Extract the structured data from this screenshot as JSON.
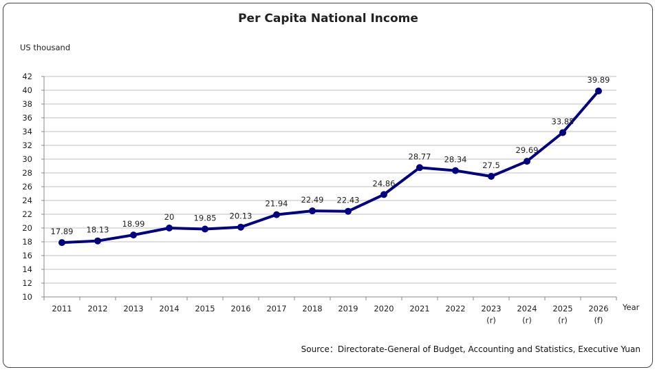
{
  "chart_data": {
    "type": "line",
    "title": "Per Capita National Income",
    "ylabel": "US thousand",
    "xlabel": "Year",
    "categories": [
      "2011",
      "2012",
      "2013",
      "2014",
      "2015",
      "2016",
      "2017",
      "2018",
      "2019",
      "2020",
      "2021",
      "2022",
      "2023",
      "2024",
      "2025",
      "2026"
    ],
    "category_sublabels": [
      "",
      "",
      "",
      "",
      "",
      "",
      "",
      "",
      "",
      "",
      "",
      "",
      "(r)",
      "(r)",
      "(r)",
      "(f)"
    ],
    "values": [
      17.89,
      18.13,
      18.99,
      20,
      19.85,
      20.13,
      21.94,
      22.49,
      22.43,
      24.86,
      28.77,
      28.34,
      27.5,
      29.69,
      33.85,
      39.89
    ],
    "data_labels": [
      "17.89",
      "18.13",
      "18.99",
      "20",
      "19.85",
      "20.13",
      "21.94",
      "22.49",
      "22.43",
      "24.86",
      "28.77",
      "28.34",
      "27.5",
      "29.69",
      "33.85",
      "39.89"
    ],
    "yticks": [
      10,
      12,
      14,
      16,
      18,
      20,
      22,
      24,
      26,
      28,
      30,
      32,
      34,
      36,
      38,
      40,
      42
    ],
    "ylim": [
      10,
      42
    ],
    "grid": true,
    "line_color": "#000080",
    "grid_color": "#bfbfbf"
  },
  "source": "Source：Directorate-General of Budget, Accounting and Statistics, Executive Yuan"
}
